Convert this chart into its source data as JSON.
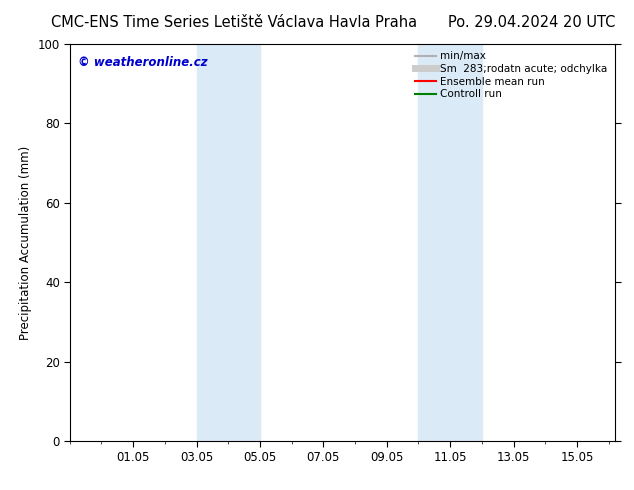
{
  "title_left": "CMC-ENS Time Series Letiště Václava Havla Praha",
  "title_right": "Po. 29.04.2024 20 UTC",
  "ylabel": "Precipitation Accumulation (mm)",
  "ylim": [
    0,
    100
  ],
  "yticks": [
    0,
    20,
    40,
    60,
    80,
    100
  ],
  "xtick_labels": [
    "01.05",
    "03.05",
    "05.05",
    "07.05",
    "09.05",
    "11.05",
    "13.05",
    "15.05"
  ],
  "xtick_positions": [
    2,
    4,
    6,
    8,
    10,
    12,
    14,
    16
  ],
  "xlim": [
    0,
    17.2
  ],
  "shaded_regions": [
    {
      "x_start": 4.0,
      "x_end": 5.3
    },
    {
      "x_start": 5.7,
      "x_end": 6.1
    },
    {
      "x_start": 10.7,
      "x_end": 12.0
    },
    {
      "x_start": 12.3,
      "x_end": 12.75
    }
  ],
  "shaded_color": "#daeaf7",
  "watermark_text": "© weatheronline.cz",
  "watermark_color": "#0000cc",
  "legend_entries": [
    {
      "label": "min/max",
      "color": "#b0b0b0",
      "lw": 1.5,
      "ls": "solid"
    },
    {
      "label": "Sm  283;rodatn acute; odchylka",
      "color": "#cccccc",
      "lw": 5,
      "ls": "solid"
    },
    {
      "label": "Ensemble mean run",
      "color": "#ff0000",
      "lw": 1.5,
      "ls": "solid"
    },
    {
      "label": "Controll run",
      "color": "#008000",
      "lw": 1.5,
      "ls": "solid"
    }
  ],
  "background_color": "#ffffff",
  "plot_bg_color": "#ffffff",
  "title_fontsize": 10.5,
  "axis_label_fontsize": 8.5,
  "tick_fontsize": 8.5,
  "legend_fontsize": 7.5
}
